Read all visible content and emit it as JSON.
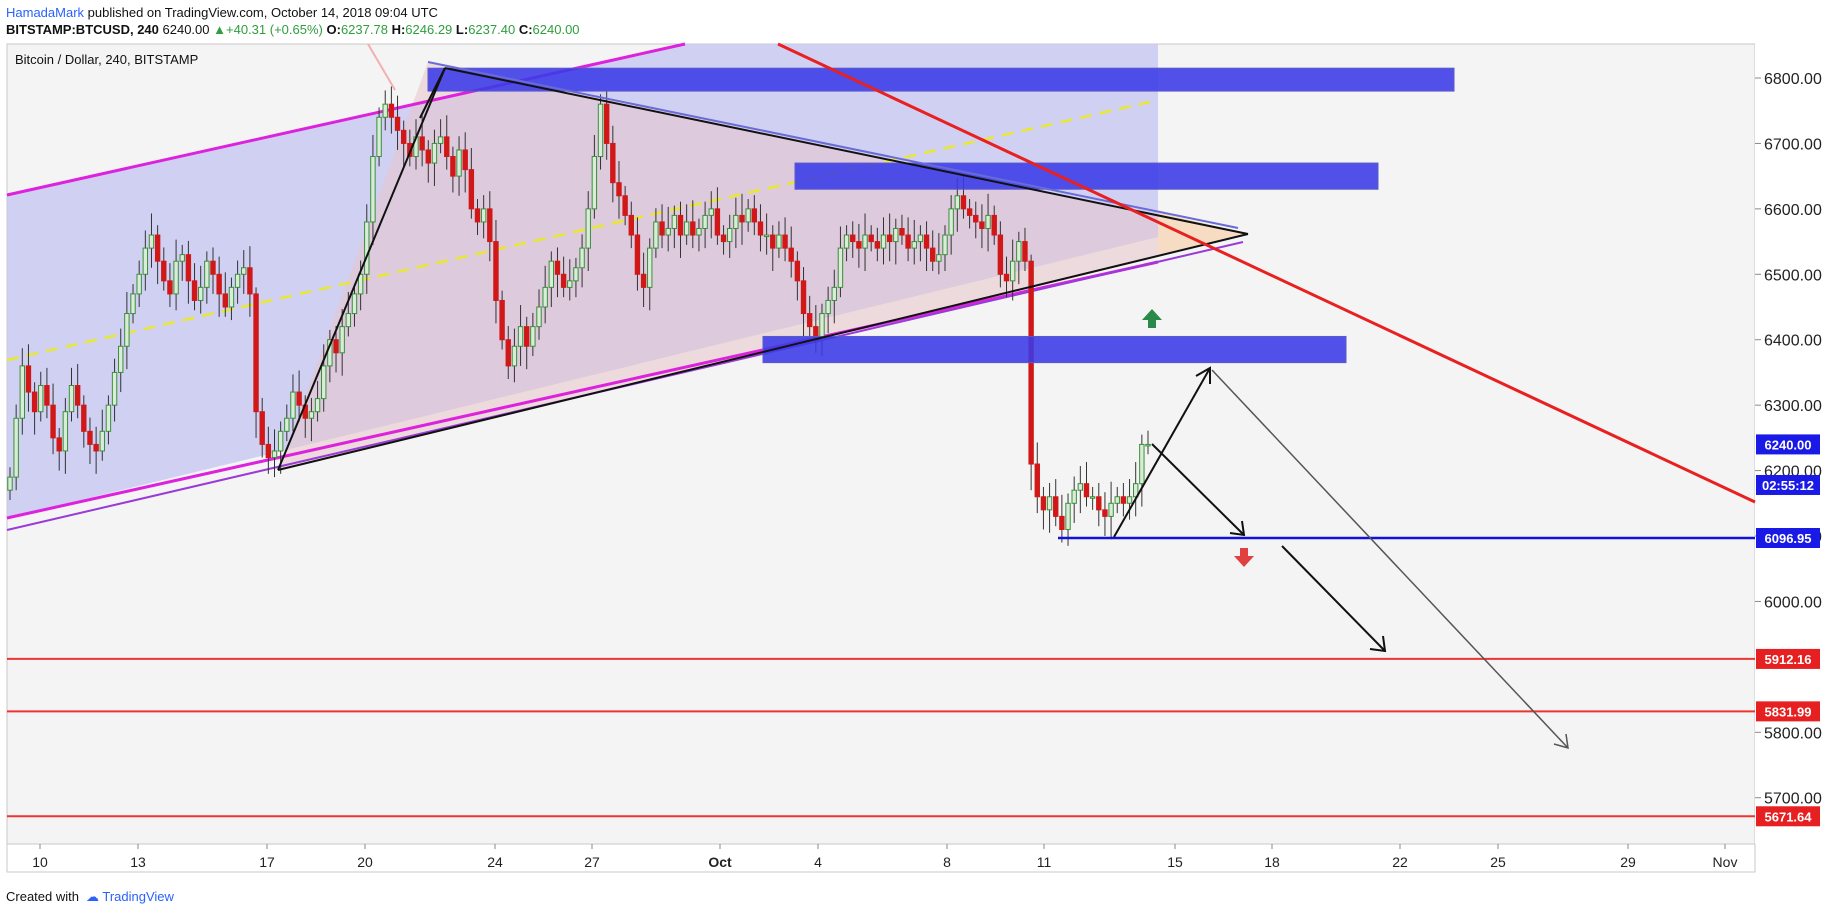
{
  "header": {
    "author": "HamadaMark",
    "published_text": "published on TradingView.com, October 14, 2018 09:04 UTC",
    "symbol": "BITSTAMP:BTCUSD, 240",
    "last": "6240.00",
    "change": "+40.31 (+0.65%)",
    "o_label": "O:",
    "o_val": "6237.78",
    "h_label": "H:",
    "h_val": "6246.29",
    "l_label": "L:",
    "l_val": "6237.40",
    "c_label": "C:",
    "c_val": "6240.00"
  },
  "footer": {
    "created_with": "Created with",
    "brand": "TradingView"
  },
  "colors": {
    "bull": "#3a8e3a",
    "bear": "#d01818",
    "channel": "#dd22dd",
    "trend_red": "#e82020",
    "zone": "#3a3ae8",
    "support": "#1010e0",
    "level_red": "#ee3333",
    "fill": "#c9c9f2"
  },
  "chart_data": {
    "type": "candlestick",
    "title": "Bitcoin / Dollar, 240, BITSTAMP",
    "y_ticks": [
      5700,
      5800,
      6000,
      6100,
      6200,
      6300,
      6400,
      6500,
      6600,
      6700,
      6800
    ],
    "y_tick_labels": [
      "5700.00",
      "5800.00",
      "6000.00",
      "6100.00",
      "6200.00",
      "6300.00",
      "6400.00",
      "6500.00",
      "6600.00",
      "6700.00",
      "6800.00"
    ],
    "x_ticks": [
      "10",
      "13",
      "17",
      "20",
      "24",
      "27",
      "Oct",
      "4",
      "8",
      "11",
      "15",
      "18",
      "22",
      "25",
      "29",
      "Nov"
    ],
    "price_badges": [
      {
        "label": "6240.00",
        "value": 6240,
        "color": "#1a1ae6"
      },
      {
        "label": "02:55:12",
        "value": 6178,
        "color": "#1a1ae6"
      },
      {
        "label": "6096.95",
        "value": 6096.95,
        "color": "#1a1ae6"
      },
      {
        "label": "5912.16",
        "value": 5912.16,
        "color": "#e62020"
      },
      {
        "label": "5831.99",
        "value": 5831.99,
        "color": "#e62020"
      },
      {
        "label": "5671.64",
        "value": 5671.64,
        "color": "#e62020"
      }
    ],
    "support_level": 6096.95,
    "resistance_levels": [
      5912.16,
      5831.99,
      5671.64
    ],
    "zones": [
      [
        6780,
        6815
      ],
      [
        6630,
        6670
      ],
      [
        6365,
        6405
      ]
    ],
    "candles": [
      6190,
      6280,
      6360,
      6320,
      6290,
      6330,
      6300,
      6250,
      6230,
      6290,
      6330,
      6300,
      6260,
      6240,
      6230,
      6260,
      6300,
      6350,
      6390,
      6440,
      6470,
      6500,
      6540,
      6560,
      6520,
      6490,
      6470,
      6520,
      6530,
      6490,
      6460,
      6480,
      6520,
      6500,
      6470,
      6450,
      6480,
      6500,
      6510,
      6470,
      6290,
      6240,
      6220,
      6230,
      6260,
      6280,
      6320,
      6300,
      6280,
      6290,
      6310,
      6360,
      6400,
      6380,
      6420,
      6440,
      6470,
      6500,
      6580,
      6680,
      6740,
      6760,
      6740,
      6720,
      6700,
      6680,
      6710,
      6690,
      6670,
      6700,
      6710,
      6680,
      6650,
      6690,
      6660,
      6600,
      6580,
      6600,
      6550,
      6460,
      6400,
      6360,
      6390,
      6420,
      6390,
      6420,
      6450,
      6480,
      6520,
      6500,
      6480,
      6490,
      6510,
      6540,
      6600,
      6680,
      6760,
      6700,
      6640,
      6620,
      6590,
      6560,
      6500,
      6480,
      6540,
      6580,
      6560,
      6570,
      6590,
      6560,
      6580,
      6560,
      6570,
      6590,
      6600,
      6560,
      6550,
      6570,
      6590,
      6580,
      6600,
      6580,
      6560,
      6560,
      6540,
      6560,
      6540,
      6520,
      6490,
      6440,
      6420,
      6400,
      6440,
      6460,
      6480,
      6540,
      6560,
      6550,
      6540,
      6560,
      6550,
      6540,
      6560,
      6550,
      6570,
      6560,
      6540,
      6550,
      6560,
      6540,
      6520,
      6530,
      6560,
      6600,
      6620,
      6600,
      6590,
      6580,
      6570,
      6590,
      6560,
      6500,
      6490,
      6520,
      6550,
      6520,
      6210,
      6160,
      6140,
      6160,
      6130,
      6110,
      6150,
      6170,
      6180,
      6160,
      6160,
      6140,
      6130,
      6150,
      6160,
      6150,
      6160,
      6180,
      6240,
      6240
    ]
  }
}
